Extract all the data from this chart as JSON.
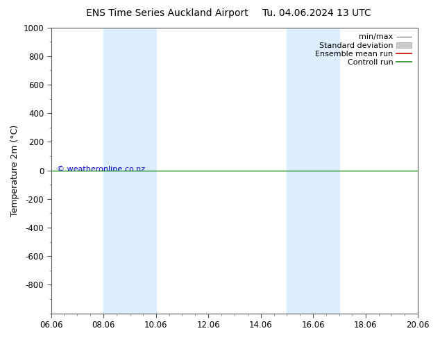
{
  "title_left": "ENS Time Series Auckland Airport",
  "title_right": "Tu. 04.06.2024 13 UTC",
  "ylabel": "Temperature 2m (°C)",
  "ylim_top": -1000,
  "ylim_bottom": 1000,
  "yticks": [
    -800,
    -600,
    -400,
    -200,
    0,
    200,
    400,
    600,
    800,
    1000
  ],
  "xlim": [
    0,
    14
  ],
  "xtick_labels": [
    "06.06",
    "08.06",
    "10.06",
    "12.06",
    "14.06",
    "16.06",
    "18.06",
    "20.06"
  ],
  "xtick_positions": [
    0,
    2,
    4,
    6,
    8,
    10,
    12,
    14
  ],
  "blue_bands": [
    {
      "start": 2.0,
      "end": 4.0
    },
    {
      "start": 9.0,
      "end": 11.0
    }
  ],
  "control_run_y": 0,
  "control_run_color": "#228B22",
  "ensemble_mean_color": "#cc0000",
  "minmax_color": "#888888",
  "std_dev_color": "#cccccc",
  "band_color": "#ddeeff",
  "watermark": "© weatheronline.co.nz",
  "watermark_color": "#0000cc",
  "background_color": "#ffffff",
  "legend_entries": [
    "min/max",
    "Standard deviation",
    "Ensemble mean run",
    "Controll run"
  ],
  "title_fontsize": 10,
  "axis_fontsize": 9,
  "tick_fontsize": 8.5,
  "legend_fontsize": 8
}
